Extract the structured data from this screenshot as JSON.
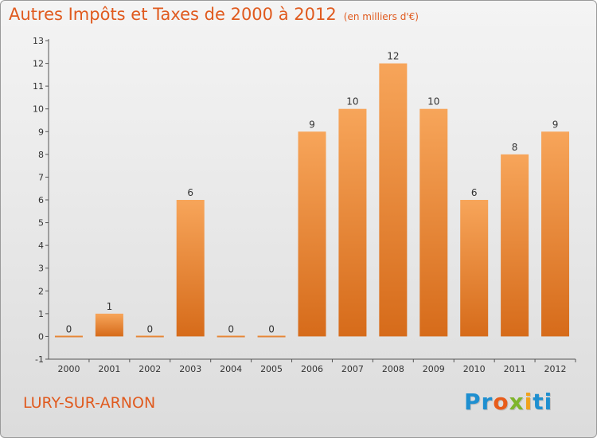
{
  "header": {
    "title": "Autres Impôts et Taxes de 2000 à 2012",
    "unit": "(en milliers d'€)"
  },
  "footer": {
    "city": "LURY-SUR-ARNON",
    "logo": [
      "Pr",
      "o",
      "x",
      "i",
      "ti"
    ]
  },
  "chart_data": {
    "type": "bar",
    "title": "Autres Impôts et Taxes de 2000 à 2012",
    "subtitle": "(en milliers d'€)",
    "categories": [
      "2000",
      "2001",
      "2002",
      "2003",
      "2004",
      "2005",
      "2006",
      "2007",
      "2008",
      "2009",
      "2010",
      "2011",
      "2012"
    ],
    "values": [
      0,
      1,
      0,
      6,
      0,
      0,
      9,
      10,
      12,
      10,
      6,
      8,
      9
    ],
    "ylim": [
      -1,
      13
    ],
    "yticks": [
      -1,
      0,
      1,
      2,
      3,
      4,
      5,
      6,
      7,
      8,
      9,
      10,
      11,
      12,
      13
    ],
    "grid": false,
    "colors": {
      "bar_light": "#f7a55a",
      "bar_dark": "#d66b1a",
      "text": "#333333",
      "axis": "#555555"
    }
  }
}
